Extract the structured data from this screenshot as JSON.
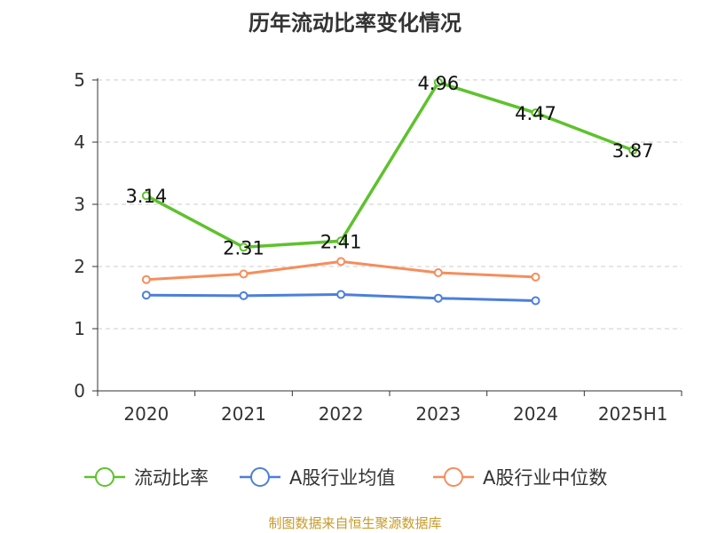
{
  "chart_data": {
    "type": "line",
    "title": "历年流动比率变化情况",
    "categories": [
      "2020",
      "2021",
      "2022",
      "2023",
      "2024",
      "2025H1"
    ],
    "ylim": [
      0,
      5
    ],
    "yticks": [
      0,
      1,
      2,
      3,
      4,
      5
    ],
    "grid": true,
    "legend_position": "bottom",
    "series": [
      {
        "name": "流动比率",
        "color": "#5ec22d",
        "values": [
          3.14,
          2.31,
          2.41,
          4.96,
          4.47,
          3.87
        ],
        "data_labels": [
          "3.14",
          "2.31",
          "2.41",
          "4.96",
          "4.47",
          "3.87"
        ]
      },
      {
        "name": "A股行业均值",
        "color": "#4c7fdc",
        "values": [
          1.54,
          1.53,
          1.55,
          1.49,
          1.45,
          null
        ]
      },
      {
        "name": "A股行业中位数",
        "color": "#f58e5d",
        "values": [
          1.79,
          1.88,
          2.08,
          1.9,
          1.83,
          null
        ]
      }
    ],
    "source_note": "制图数据来自恒生聚源数据库"
  }
}
